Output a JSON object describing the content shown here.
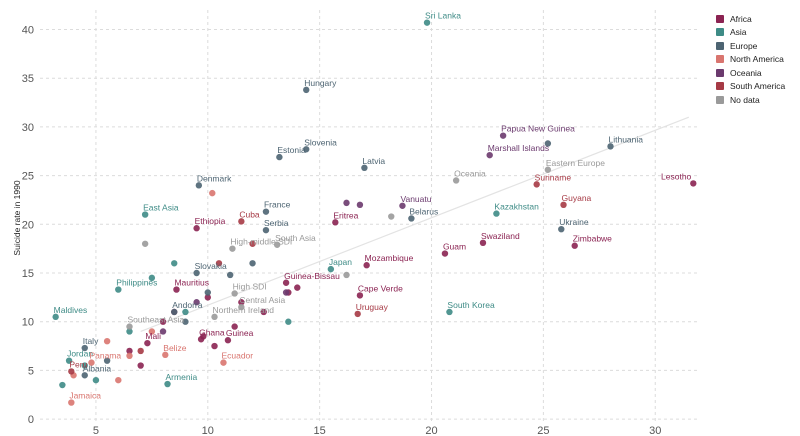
{
  "chart_data": {
    "type": "scatter",
    "title": "",
    "xlabel": "",
    "ylabel": "Suicide rate in 1990",
    "xlim": [
      2.5,
      32
    ],
    "ylim": [
      -0.5,
      42
    ],
    "x_ticks": [
      5,
      10,
      15,
      20,
      25,
      30
    ],
    "y_ticks": [
      0,
      5,
      10,
      15,
      20,
      25,
      30,
      35,
      40
    ],
    "grid": true,
    "legend_position": "top-right",
    "trend_line": [
      [
        7,
        9
      ],
      [
        31.5,
        31
      ]
    ],
    "series": [
      {
        "name": "Africa",
        "color": "#8b2352",
        "points": [
          {
            "x": 10.3,
            "y": 7.5
          },
          {
            "x": 11.2,
            "y": 9.5
          },
          {
            "x": 9.8,
            "y": 8.5
          },
          {
            "x": 8.5,
            "y": 11
          },
          {
            "x": 11.5,
            "y": 12
          },
          {
            "x": 13.6,
            "y": 13
          },
          {
            "x": 17.1,
            "y": 15.8,
            "label": "Mozambique"
          },
          {
            "x": 16.8,
            "y": 12.7,
            "label": "Cape Verde"
          },
          {
            "x": 13.5,
            "y": 14,
            "label": "Guinea-Bissau"
          },
          {
            "x": 15.7,
            "y": 20.2,
            "label": "Eritrea"
          },
          {
            "x": 10.9,
            "y": 8.1,
            "label": "Guinea"
          },
          {
            "x": 9.7,
            "y": 8.2,
            "label": "Ghana"
          },
          {
            "x": 8.6,
            "y": 13.3,
            "label": "Mauritius"
          },
          {
            "x": 7.3,
            "y": 7.8,
            "label": "Mali"
          },
          {
            "x": 9.5,
            "y": 19.6,
            "label": "Ethiopia"
          },
          {
            "x": 20.6,
            "y": 17,
            "label": "Guam"
          },
          {
            "x": 22.3,
            "y": 18.1,
            "label": "Swaziland"
          },
          {
            "x": 26.4,
            "y": 17.8,
            "label": "Zimbabwe"
          },
          {
            "x": 31.7,
            "y": 24.2,
            "label": "Lesotho"
          },
          {
            "x": 6.5,
            "y": 7
          },
          {
            "x": 7,
            "y": 5.5
          },
          {
            "x": 12.5,
            "y": 11
          },
          {
            "x": 14,
            "y": 13.5
          },
          {
            "x": 8,
            "y": 10
          },
          {
            "x": 10,
            "y": 12.5
          }
        ]
      },
      {
        "name": "Asia",
        "color": "#3e8b86",
        "points": [
          {
            "x": 19.8,
            "y": 40.7,
            "label": "Sri Lanka"
          },
          {
            "x": 15.5,
            "y": 15.4,
            "label": "Japan"
          },
          {
            "x": 20.8,
            "y": 11,
            "label": "South Korea"
          },
          {
            "x": 22.9,
            "y": 21.1,
            "label": "Kazakhstan"
          },
          {
            "x": 3.2,
            "y": 10.5,
            "label": "Maldives"
          },
          {
            "x": 3.8,
            "y": 6,
            "label": "Jordan"
          },
          {
            "x": 8.2,
            "y": 3.6,
            "label": "Armenia"
          },
          {
            "x": 6,
            "y": 13.3,
            "label": "Philippines"
          },
          {
            "x": 7.2,
            "y": 21,
            "label": "East Asia"
          },
          {
            "x": 4.5,
            "y": 5.5
          },
          {
            "x": 5,
            "y": 4
          },
          {
            "x": 3.5,
            "y": 3.5
          },
          {
            "x": 6.5,
            "y": 9
          },
          {
            "x": 9,
            "y": 11
          },
          {
            "x": 13.6,
            "y": 10
          },
          {
            "x": 7.5,
            "y": 14.5
          },
          {
            "x": 8.5,
            "y": 16
          }
        ]
      },
      {
        "name": "Europe",
        "color": "#4d6472",
        "points": [
          {
            "x": 14.4,
            "y": 33.8,
            "label": "Hungary"
          },
          {
            "x": 14.4,
            "y": 27.7,
            "label": "Slovenia"
          },
          {
            "x": 13.2,
            "y": 26.9,
            "label": "Estonia"
          },
          {
            "x": 17,
            "y": 25.8,
            "label": "Latvia"
          },
          {
            "x": 28,
            "y": 28,
            "label": "Lithuania"
          },
          {
            "x": 25.2,
            "y": 28.3
          },
          {
            "x": 25.8,
            "y": 19.5,
            "label": "Ukraine"
          },
          {
            "x": 19.1,
            "y": 20.6,
            "label": "Belarus"
          },
          {
            "x": 9.6,
            "y": 24,
            "label": "Denmark"
          },
          {
            "x": 12.6,
            "y": 21.3,
            "label": "France"
          },
          {
            "x": 12.6,
            "y": 19.4,
            "label": "Serbia"
          },
          {
            "x": 9.5,
            "y": 15,
            "label": "Slovakia"
          },
          {
            "x": 8.5,
            "y": 11,
            "label": "Andorra"
          },
          {
            "x": 4.5,
            "y": 7.3,
            "label": "Italy"
          },
          {
            "x": 4.5,
            "y": 4.5,
            "label": "Albania"
          },
          {
            "x": 11,
            "y": 14.8
          },
          {
            "x": 12,
            "y": 16
          },
          {
            "x": 10,
            "y": 13
          },
          {
            "x": 9,
            "y": 10
          },
          {
            "x": 5.5,
            "y": 6
          }
        ]
      },
      {
        "name": "North America",
        "color": "#d9756f",
        "points": [
          {
            "x": 10.2,
            "y": 23.2
          },
          {
            "x": 10.7,
            "y": 5.8,
            "label": "Ecuador"
          },
          {
            "x": 8.1,
            "y": 6.6,
            "label": "Belize"
          },
          {
            "x": 4.8,
            "y": 5.8,
            "label": "Panama"
          },
          {
            "x": 3.9,
            "y": 1.7,
            "label": "Jamaica"
          },
          {
            "x": 4,
            "y": 4.5
          },
          {
            "x": 6,
            "y": 4
          },
          {
            "x": 6.5,
            "y": 6.5
          },
          {
            "x": 7.5,
            "y": 9
          },
          {
            "x": 5.5,
            "y": 8
          }
        ]
      },
      {
        "name": "Oceania",
        "color": "#6b3a6e",
        "points": [
          {
            "x": 23.2,
            "y": 29.1,
            "label": "Papua New Guinea"
          },
          {
            "x": 22.6,
            "y": 27.1,
            "label": "Marshall Islands"
          },
          {
            "x": 18.7,
            "y": 21.9,
            "label": "Vanuatu"
          },
          {
            "x": 16.8,
            "y": 22
          },
          {
            "x": 16.2,
            "y": 22.2
          },
          {
            "x": 13.5,
            "y": 13
          },
          {
            "x": 9.5,
            "y": 12
          },
          {
            "x": 8,
            "y": 9
          }
        ]
      },
      {
        "name": "South America",
        "color": "#a63a45",
        "points": [
          {
            "x": 24.7,
            "y": 24.1,
            "label": "Suriname"
          },
          {
            "x": 25.9,
            "y": 22,
            "label": "Guyana"
          },
          {
            "x": 16.7,
            "y": 10.8,
            "label": "Uruguay"
          },
          {
            "x": 11.5,
            "y": 20.3,
            "label": "Cuba"
          },
          {
            "x": 3.9,
            "y": 4.9,
            "label": "Peru"
          },
          {
            "x": 7,
            "y": 7
          },
          {
            "x": 12,
            "y": 18
          },
          {
            "x": 10.5,
            "y": 16
          }
        ]
      },
      {
        "name": "No data",
        "color": "#9a9a9a",
        "points": [
          {
            "x": 21.1,
            "y": 24.5,
            "label": "Oceania"
          },
          {
            "x": 25.2,
            "y": 25.6,
            "label": "Eastern Europe"
          },
          {
            "x": 13.1,
            "y": 17.9,
            "label": "South Asia"
          },
          {
            "x": 11.1,
            "y": 17.5,
            "label": "High-middle SDI"
          },
          {
            "x": 11.2,
            "y": 12.9,
            "label": "High SDI"
          },
          {
            "x": 11.5,
            "y": 11.5,
            "label": "Central Asia"
          },
          {
            "x": 6.5,
            "y": 9.5,
            "label": "Southeast Asia"
          },
          {
            "x": 10.3,
            "y": 10.5,
            "label": "Northern Ireland"
          },
          {
            "x": 16.2,
            "y": 14.8
          },
          {
            "x": 18.2,
            "y": 20.8
          },
          {
            "x": 7.2,
            "y": 18
          }
        ]
      }
    ]
  }
}
